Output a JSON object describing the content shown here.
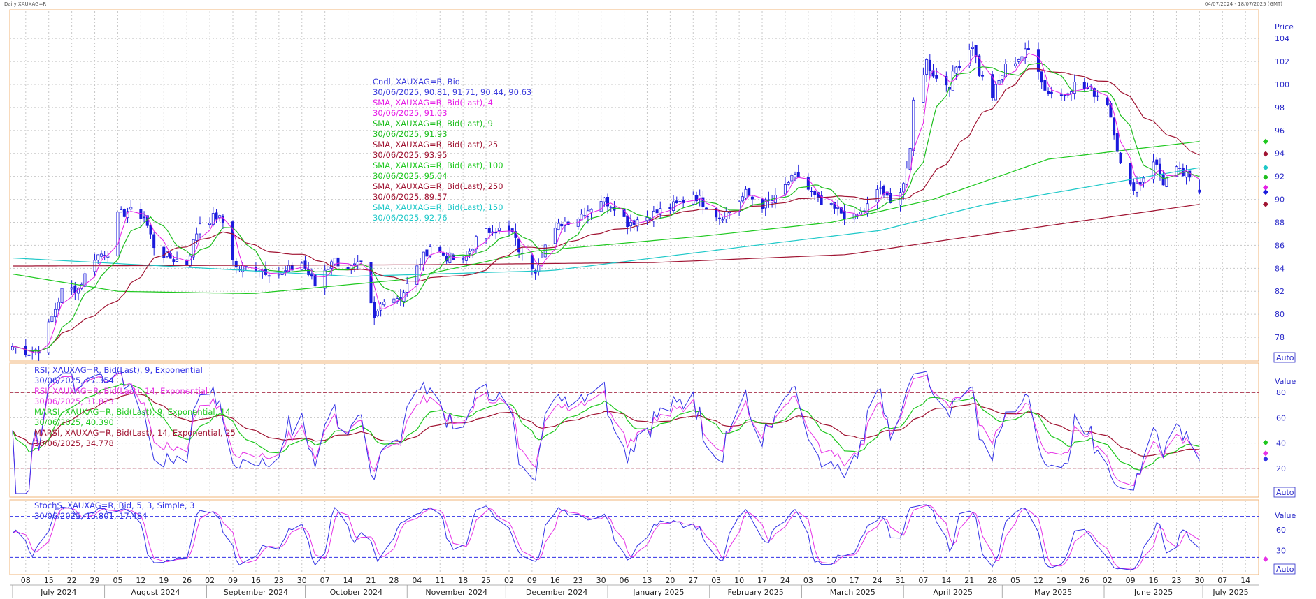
{
  "header": {
    "left": "Daily XAUXAG=R",
    "right": "04/07/2024 - 18/07/2025 (GMT)"
  },
  "colors": {
    "candle": "#1a1adc",
    "sma4": "#e61ee6",
    "sma9": "#1ebe1e",
    "sma25": "#a01432",
    "sma100": "#1ec81e",
    "sma250": "#a01432",
    "sma150": "#1ec8c8",
    "rsi9": "#3232e6",
    "rsi14": "#e632e6",
    "marsi9": "#1ec81e",
    "marsi14": "#a01432",
    "stochK": "#3232e6",
    "stochD": "#e632e6",
    "axis_text": "#2828c8",
    "frame": "#f0b478",
    "refline": "#a01432"
  },
  "legend_main": [
    {
      "label": "Cndl, XAUXAG=R, Bid",
      "value": "30/06/2025, 90.81, 91.71, 90.44, 90.63",
      "color": "#3c3cdc"
    },
    {
      "label": "SMA, XAUXAG=R, Bid(Last),  4",
      "value": "30/06/2025, 91.03",
      "color": "#e61ee6"
    },
    {
      "label": "SMA, XAUXAG=R, Bid(Last),  9",
      "value": "30/06/2025, 91.93",
      "color": "#1ebe1e"
    },
    {
      "label": "SMA, XAUXAG=R, Bid(Last),  25",
      "value": "30/06/2025, 93.95",
      "color": "#a01432"
    },
    {
      "label": "SMA, XAUXAG=R, Bid(Last),  100",
      "value": "30/06/2025, 95.04",
      "color": "#1ec81e"
    },
    {
      "label": "SMA, XAUXAG=R, Bid(Last),  250",
      "value": "30/06/2025, 89.57",
      "color": "#a01432"
    },
    {
      "label": "SMA, XAUXAG=R, Bid(Last),  150",
      "value": "30/06/2025, 92.76",
      "color": "#1ec8c8"
    }
  ],
  "legend_rsi": [
    {
      "label": "RSI, XAUXAG=R, Bid(Last),  9, Exponential",
      "value": "30/06/2025, 27.354",
      "color": "#3232e6"
    },
    {
      "label": "RSI, XAUXAG=R, Bid(Last),  14, Exponential",
      "value": "30/06/2025, 31.823",
      "color": "#e632e6"
    },
    {
      "label": "MARSI, XAUXAG=R, Bid(Last),  9, Exponential, 14",
      "value": "30/06/2025, 40.390",
      "color": "#1ec81e"
    },
    {
      "label": "MARSI, XAUXAG=R, Bid(Last),  14, Exponential, 25",
      "value": "30/06/2025, 34.778",
      "color": "#a01432"
    }
  ],
  "legend_stoch": [
    {
      "label": "StochS, XAUXAG=R, Bid,  5, 3, Simple, 3",
      "value": "30/06/2025, 15.801, 17.484",
      "color": "#3232e6"
    }
  ],
  "chart_data": [
    {
      "type": "candlestick",
      "pane": "price",
      "axis_title": "Price",
      "ylim": [
        76,
        106.5
      ],
      "yticks": [
        78,
        80,
        82,
        84,
        86,
        88,
        90,
        92,
        94,
        96,
        98,
        100,
        102,
        104
      ],
      "grid": true,
      "auto_label": "Auto",
      "anchors": [
        [
          "2024-07-04",
          77.2
        ],
        [
          "2024-07-09",
          76.7
        ],
        [
          "2024-07-12",
          77.0
        ],
        [
          "2024-07-15",
          79.0
        ],
        [
          "2024-07-19",
          82.0
        ],
        [
          "2024-07-24",
          82.3
        ],
        [
          "2024-07-29",
          85.0
        ],
        [
          "2024-08-02",
          85.5
        ],
        [
          "2024-08-05",
          88.5
        ],
        [
          "2024-08-08",
          89.0
        ],
        [
          "2024-08-13",
          88.5
        ],
        [
          "2024-08-16",
          86.0
        ],
        [
          "2024-08-20",
          85.0
        ],
        [
          "2024-08-26",
          84.5
        ],
        [
          "2024-08-30",
          88.0
        ],
        [
          "2024-09-04",
          88.5
        ],
        [
          "2024-09-06",
          88.0
        ],
        [
          "2024-09-10",
          84.0
        ],
        [
          "2024-09-16",
          84.0
        ],
        [
          "2024-09-24",
          83.5
        ],
        [
          "2024-09-30",
          84.5
        ],
        [
          "2024-10-04",
          82.5
        ],
        [
          "2024-10-09",
          84.8
        ],
        [
          "2024-10-15",
          84.0
        ],
        [
          "2024-10-18",
          84.2
        ],
        [
          "2024-10-22",
          79.5
        ],
        [
          "2024-10-25",
          81.5
        ],
        [
          "2024-10-30",
          81.5
        ],
        [
          "2024-11-04",
          84.0
        ],
        [
          "2024-11-08",
          86.0
        ],
        [
          "2024-11-13",
          85.0
        ],
        [
          "2024-11-18",
          84.5
        ],
        [
          "2024-11-22",
          86.5
        ],
        [
          "2024-11-27",
          87.5
        ],
        [
          "2024-12-03",
          87.0
        ],
        [
          "2024-12-06",
          85.0
        ],
        [
          "2024-12-10",
          84.0
        ],
        [
          "2024-12-13",
          86.0
        ],
        [
          "2024-12-18",
          88.0
        ],
        [
          "2024-12-23",
          88.5
        ],
        [
          "2024-12-30",
          90.0
        ],
        [
          "2025-01-03",
          89.5
        ],
        [
          "2025-01-07",
          88.0
        ],
        [
          "2025-01-13",
          88.5
        ],
        [
          "2025-01-17",
          89.0
        ],
        [
          "2025-01-22",
          89.5
        ],
        [
          "2025-01-27",
          90.5
        ],
        [
          "2025-01-31",
          89.5
        ],
        [
          "2025-02-04",
          88.5
        ],
        [
          "2025-02-07",
          89.0
        ],
        [
          "2025-02-12",
          90.5
        ],
        [
          "2025-02-17",
          89.5
        ],
        [
          "2025-02-21",
          90.0
        ],
        [
          "2025-02-25",
          91.5
        ],
        [
          "2025-02-28",
          92.0
        ],
        [
          "2025-03-04",
          90.5
        ],
        [
          "2025-03-07",
          89.5
        ],
        [
          "2025-03-12",
          89.0
        ],
        [
          "2025-03-17",
          88.3
        ],
        [
          "2025-03-20",
          89.0
        ],
        [
          "2025-03-25",
          91.0
        ],
        [
          "2025-03-28",
          89.5
        ],
        [
          "2025-04-01",
          91.5
        ],
        [
          "2025-04-03",
          94.0
        ],
        [
          "2025-04-04",
          98.5
        ],
        [
          "2025-04-08",
          102.0
        ],
        [
          "2025-04-11",
          100.5
        ],
        [
          "2025-04-15",
          100.0
        ],
        [
          "2025-04-17",
          101.5
        ],
        [
          "2025-04-22",
          103.5
        ],
        [
          "2025-04-24",
          101.0
        ],
        [
          "2025-04-28",
          99.0
        ],
        [
          "2025-05-02",
          101.5
        ],
        [
          "2025-05-07",
          102.5
        ],
        [
          "2025-05-09",
          103.0
        ],
        [
          "2025-05-12",
          101.5
        ],
        [
          "2025-05-14",
          99.5
        ],
        [
          "2025-05-19",
          99.0
        ],
        [
          "2025-05-23",
          100.0
        ],
        [
          "2025-05-28",
          99.5
        ],
        [
          "2025-06-02",
          98.5
        ],
        [
          "2025-06-04",
          96.0
        ],
        [
          "2025-06-06",
          93.0
        ],
        [
          "2025-06-09",
          91.0
        ],
        [
          "2025-06-12",
          91.5
        ],
        [
          "2025-06-16",
          93.5
        ],
        [
          "2025-06-19",
          91.5
        ],
        [
          "2025-06-23",
          92.5
        ],
        [
          "2025-06-26",
          92.0
        ],
        [
          "2025-06-30",
          90.63
        ]
      ],
      "last_candle": {
        "date": "2025-06-30",
        "open": 90.81,
        "high": 91.71,
        "low": 90.44,
        "close": 90.63
      },
      "series_last": {
        "SMA 4": 91.03,
        "SMA 9": 91.93,
        "SMA 25": 93.95,
        "SMA 100": 95.04,
        "SMA 250": 89.57,
        "SMA 150": 92.76
      },
      "sma_250_anchors": [
        [
          "2024-07-04",
          84.2
        ],
        [
          "2024-11-01",
          84.3
        ],
        [
          "2025-01-15",
          84.5
        ],
        [
          "2025-03-15",
          85.2
        ],
        [
          "2025-04-15",
          86.5
        ],
        [
          "2025-06-30",
          89.57
        ]
      ],
      "sma_150_anchors": [
        [
          "2024-07-04",
          84.9
        ],
        [
          "2024-09-01",
          84.0
        ],
        [
          "2024-10-15",
          83.3
        ],
        [
          "2024-12-15",
          83.8
        ],
        [
          "2025-02-15",
          86.0
        ],
        [
          "2025-03-25",
          87.3
        ],
        [
          "2025-04-25",
          89.5
        ],
        [
          "2025-06-30",
          92.76
        ]
      ],
      "sma_100_anchors": [
        [
          "2024-07-04",
          83.5
        ],
        [
          "2024-08-05",
          82.0
        ],
        [
          "2024-09-15",
          81.8
        ],
        [
          "2024-10-30",
          83.0
        ],
        [
          "2024-12-10",
          85.5
        ],
        [
          "2025-01-30",
          86.8
        ],
        [
          "2025-03-10",
          88.0
        ],
        [
          "2025-04-10",
          90.0
        ],
        [
          "2025-05-15",
          93.5
        ],
        [
          "2025-06-30",
          95.04
        ]
      ]
    },
    {
      "type": "line",
      "pane": "rsi",
      "axis_title": "Value",
      "ylim": [
        0,
        100
      ],
      "yticks": [
        20,
        40,
        60,
        80
      ],
      "reference_lines": [
        20,
        80
      ],
      "auto_label": "Auto",
      "series_last": {
        "RSI 9": 27.354,
        "RSI 14": 31.823,
        "MARSI 9": 40.39,
        "MARSI 14": 34.778
      }
    },
    {
      "type": "line",
      "pane": "stochastic",
      "axis_title": "Value",
      "ylim": [
        0,
        100
      ],
      "yticks": [
        30,
        60
      ],
      "reference_lines": [
        20,
        80
      ],
      "auto_label": "Auto",
      "series_last": {
        "StochS %K": 15.801,
        "StochS %D": 17.484
      }
    }
  ],
  "x_axis": {
    "start": "2024-07-04",
    "end": "2025-07-18",
    "day_ticks": [
      [
        "2024-07-08",
        "08"
      ],
      [
        "2024-07-15",
        "15"
      ],
      [
        "2024-07-22",
        "22"
      ],
      [
        "2024-07-29",
        "29"
      ],
      [
        "2024-08-05",
        "05"
      ],
      [
        "2024-08-12",
        "12"
      ],
      [
        "2024-08-19",
        "19"
      ],
      [
        "2024-08-26",
        "26"
      ],
      [
        "2024-09-02",
        "02"
      ],
      [
        "2024-09-09",
        "09"
      ],
      [
        "2024-09-16",
        "16"
      ],
      [
        "2024-09-23",
        "23"
      ],
      [
        "2024-09-30",
        "30"
      ],
      [
        "2024-10-07",
        "07"
      ],
      [
        "2024-10-14",
        "14"
      ],
      [
        "2024-10-21",
        "21"
      ],
      [
        "2024-10-28",
        "28"
      ],
      [
        "2024-11-04",
        "04"
      ],
      [
        "2024-11-11",
        "11"
      ],
      [
        "2024-11-18",
        "18"
      ],
      [
        "2024-11-25",
        "25"
      ],
      [
        "2024-12-02",
        "02"
      ],
      [
        "2024-12-09",
        "09"
      ],
      [
        "2024-12-16",
        "16"
      ],
      [
        "2024-12-23",
        "23"
      ],
      [
        "2024-12-30",
        "30"
      ],
      [
        "2025-01-06",
        "06"
      ],
      [
        "2025-01-13",
        "13"
      ],
      [
        "2025-01-20",
        "20"
      ],
      [
        "2025-01-27",
        "27"
      ],
      [
        "2025-02-03",
        "03"
      ],
      [
        "2025-02-10",
        "10"
      ],
      [
        "2025-02-17",
        "17"
      ],
      [
        "2025-02-24",
        "24"
      ],
      [
        "2025-03-03",
        "03"
      ],
      [
        "2025-03-10",
        "10"
      ],
      [
        "2025-03-17",
        "17"
      ],
      [
        "2025-03-24",
        "24"
      ],
      [
        "2025-03-31",
        "31"
      ],
      [
        "2025-04-07",
        "07"
      ],
      [
        "2025-04-14",
        "14"
      ],
      [
        "2025-04-21",
        "21"
      ],
      [
        "2025-04-28",
        "28"
      ],
      [
        "2025-05-05",
        "05"
      ],
      [
        "2025-05-12",
        "12"
      ],
      [
        "2025-05-19",
        "19"
      ],
      [
        "2025-05-26",
        "26"
      ],
      [
        "2025-06-02",
        "02"
      ],
      [
        "2025-06-09",
        "09"
      ],
      [
        "2025-06-16",
        "16"
      ],
      [
        "2025-06-23",
        "23"
      ],
      [
        "2025-06-30",
        "30"
      ],
      [
        "2025-07-07",
        "07"
      ],
      [
        "2025-07-14",
        "14"
      ]
    ],
    "months": [
      [
        "2024-07-01",
        "July 2024"
      ],
      [
        "2024-08-01",
        "August 2024"
      ],
      [
        "2024-09-01",
        "September 2024"
      ],
      [
        "2024-10-01",
        "October 2024"
      ],
      [
        "2024-11-01",
        "November 2024"
      ],
      [
        "2024-12-01",
        "December 2024"
      ],
      [
        "2025-01-01",
        "January 2025"
      ],
      [
        "2025-02-01",
        "February 2025"
      ],
      [
        "2025-03-01",
        "March 2025"
      ],
      [
        "2025-04-01",
        "April 2025"
      ],
      [
        "2025-05-01",
        "May 2025"
      ],
      [
        "2025-06-01",
        "June 2025"
      ],
      [
        "2025-07-01",
        "July 2025"
      ]
    ]
  }
}
